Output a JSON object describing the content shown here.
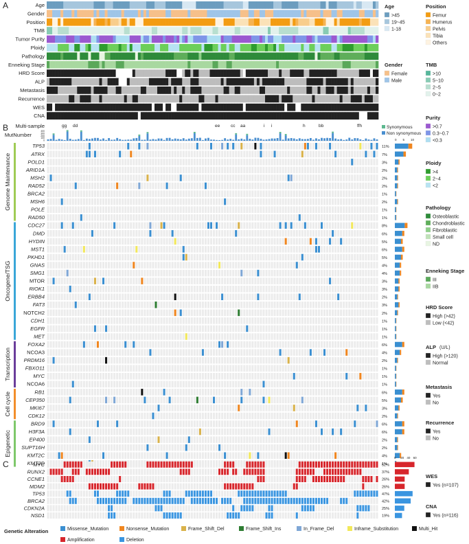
{
  "chart_data": {
    "type": "heatmap",
    "panel_labels": [
      "A",
      "B",
      "C"
    ],
    "n_samples": 120,
    "clinical_tracks": [
      {
        "label": "Age",
        "key": "age"
      },
      {
        "label": "Gender",
        "key": "gender"
      },
      {
        "label": "Position",
        "key": "position"
      },
      {
        "label": "TMB",
        "key": "tmb"
      },
      {
        "label": "Tumor Purity",
        "key": "purity"
      },
      {
        "label": "Ploidy",
        "key": "ploidy"
      },
      {
        "label": "Pathology",
        "key": "pathology"
      },
      {
        "label": "Enneking Stage",
        "key": "enneking"
      },
      {
        "label": "HRD Score",
        "key": "hrd"
      },
      {
        "label": "ALP",
        "key": "alp"
      },
      {
        "label": "Metastasis",
        "key": "metastasis"
      },
      {
        "label": "Recurrence",
        "key": "recurrence"
      },
      {
        "label": "WES",
        "key": "wes"
      },
      {
        "label": "CNA",
        "key": "cna"
      }
    ],
    "multi_sample_label": "Multi-sample",
    "multi_sample_marks": [
      "gg",
      "dd",
      "ee",
      "cc",
      "aa",
      "i",
      "i",
      "h",
      "bb",
      "ffh"
    ],
    "mutnumber_label": "MutNumber",
    "mutnumber_ticks": [
      "400",
      "300",
      "200",
      "100",
      "0"
    ],
    "mutnumber_legend": [
      {
        "label": "Synonymous",
        "color": "#5cb88f"
      },
      {
        "label": "Non synonymous",
        "color": "#4a8fd0"
      }
    ],
    "gene_groups": [
      {
        "name": "Genome Maintenance",
        "color": "#9fcc55",
        "genes": [
          {
            "gene": "TP53",
            "pct": "11%",
            "italic": true
          },
          {
            "gene": "ATRX",
            "pct": "7%",
            "italic": true
          },
          {
            "gene": "POLD1",
            "pct": "3%",
            "italic": true
          },
          {
            "gene": "ARID1A",
            "pct": "2%",
            "italic": true
          },
          {
            "gene": "MSH2",
            "pct": "2%",
            "italic": true
          },
          {
            "gene": "RAD52",
            "pct": "2%",
            "italic": true
          },
          {
            "gene": "BRCA2",
            "pct": "1%",
            "italic": true
          },
          {
            "gene": "MSH6",
            "pct": "2%",
            "italic": true
          },
          {
            "gene": "POLE",
            "pct": "1%",
            "italic": true
          },
          {
            "gene": "RAD50",
            "pct": "1%",
            "italic": true
          }
        ]
      },
      {
        "name": "Oncogene/TSG",
        "color": "#3aa6d8",
        "genes": [
          {
            "gene": "CDC27",
            "pct": "8%",
            "italic": true
          },
          {
            "gene": "DMD",
            "pct": "6%",
            "italic": true
          },
          {
            "gene": "HYDIN",
            "pct": "5%",
            "italic": true
          },
          {
            "gene": "MST1",
            "pct": "6%",
            "italic": true
          },
          {
            "gene": "PKHD1",
            "pct": "5%",
            "italic": true
          },
          {
            "gene": "GNAS",
            "pct": "4%",
            "italic": true
          },
          {
            "gene": "SMG1",
            "pct": "4%",
            "italic": true
          },
          {
            "gene": "MTOR",
            "pct": "3%",
            "italic": false
          },
          {
            "gene": "RIOK1",
            "pct": "3%",
            "italic": true
          },
          {
            "gene": "ERBB4",
            "pct": "2%",
            "italic": true
          },
          {
            "gene": "FAT3",
            "pct": "3%",
            "italic": true
          },
          {
            "gene": "NOTCH2",
            "pct": "2%",
            "italic": false
          },
          {
            "gene": "CDH1",
            "pct": "1%",
            "italic": true
          },
          {
            "gene": "EGFR",
            "pct": "1%",
            "italic": true
          },
          {
            "gene": "MET",
            "pct": "1%",
            "italic": true
          }
        ]
      },
      {
        "name": "Transcription",
        "color": "#6a3d9a",
        "genes": [
          {
            "gene": "FOXA2",
            "pct": "6%",
            "italic": true
          },
          {
            "gene": "NCOA3",
            "pct": "4%",
            "italic": false
          },
          {
            "gene": "PRDM16",
            "pct": "2%",
            "italic": true
          },
          {
            "gene": "FBXO11",
            "pct": "1%",
            "italic": true
          },
          {
            "gene": "MYC",
            "pct": "1%",
            "italic": true
          },
          {
            "gene": "NCOA6",
            "pct": "1%",
            "italic": false
          }
        ]
      },
      {
        "name": "Cell cycle",
        "color": "#f28e2b",
        "genes": [
          {
            "gene": "RB1",
            "pct": "6%",
            "italic": true
          },
          {
            "gene": "CEP350",
            "pct": "5%",
            "italic": true
          },
          {
            "gene": "MKI67",
            "pct": "3%",
            "italic": true
          },
          {
            "gene": "CDK12",
            "pct": "2%",
            "italic": true
          }
        ]
      },
      {
        "name": "Epigenetic",
        "color": "#7ec86a",
        "genes": [
          {
            "gene": "BRD9",
            "pct": "6%",
            "italic": true
          },
          {
            "gene": "H3F3A",
            "pct": "6%",
            "italic": true
          },
          {
            "gene": "EP400",
            "pct": "2%",
            "italic": true
          },
          {
            "gene": "SUPT16H",
            "pct": "2%",
            "italic": true
          },
          {
            "gene": "KMT2C",
            "pct": "4%",
            "italic": true
          },
          {
            "gene": "KMT2D",
            "pct": "1%",
            "italic": true
          }
        ]
      }
    ],
    "mut_bar_axis": [
      "0",
      "5",
      "10"
    ],
    "cna_genes": [
      {
        "gene": "MYC",
        "pct": "52%",
        "type": "amp",
        "frac": 0.52
      },
      {
        "gene": "RUNX2",
        "pct": "37%",
        "type": "amp",
        "frac": 0.37
      },
      {
        "gene": "CCNE1",
        "pct": "26%",
        "type": "amp",
        "frac": 0.26
      },
      {
        "gene": "MDM2",
        "pct": "26%",
        "type": "amp",
        "frac": 0.26
      },
      {
        "gene": "TP53",
        "pct": "47%",
        "type": "del",
        "frac": 0.47
      },
      {
        "gene": "BRCA2",
        "pct": "42%",
        "type": "del",
        "frac": 0.42
      },
      {
        "gene": "CDKN2A",
        "pct": "25%",
        "type": "del",
        "frac": 0.25
      },
      {
        "gene": "NSD1",
        "pct": "19%",
        "type": "del",
        "frac": 0.19
      }
    ],
    "cna_bar_axis": [
      "0",
      "20",
      "40",
      "60"
    ],
    "alteration_legend_title": "Genetic Alteration",
    "alteration_types": [
      {
        "label": "Missense_Mutation",
        "color": "#3a8fd1"
      },
      {
        "label": "Nonsense_Mutation",
        "color": "#f0861f"
      },
      {
        "label": "Frame_Shift_Del",
        "color": "#d9b24a"
      },
      {
        "label": "Frame_Shift_Ins",
        "color": "#2e7d32"
      },
      {
        "label": "In_Frame_Del",
        "color": "#7fa7d6"
      },
      {
        "label": "Inframe_Substitution",
        "color": "#f2e85a"
      },
      {
        "label": "Multi_Hit",
        "color": "#111111"
      },
      {
        "label": "Amplification",
        "color": "#d7262c"
      },
      {
        "label": "Deletion",
        "color": "#3a95e0"
      }
    ],
    "legends": [
      {
        "title": "Age",
        "items": [
          {
            "label": ">45",
            "color": "#6c9dbf"
          },
          {
            "label": "19~45",
            "color": "#a6c6dd"
          },
          {
            "label": "1-18",
            "color": "#d8e8f3"
          }
        ]
      },
      {
        "title": "Position",
        "items": [
          {
            "label": "Femur",
            "color": "#f39c12"
          },
          {
            "label": "Humerus",
            "color": "#f6b352"
          },
          {
            "label": "Pelvis",
            "color": "#f8cd8c"
          },
          {
            "label": "Tibia",
            "color": "#fbe2b8"
          },
          {
            "label": "Others",
            "color": "#fef3e1"
          }
        ]
      },
      {
        "title": "Gender",
        "items": [
          {
            "label": "Female",
            "color": "#f6c08a"
          },
          {
            "label": "Male",
            "color": "#9fc5e8"
          }
        ]
      },
      {
        "title": "TMB",
        "items": [
          {
            "label": ">10",
            "color": "#56b69a"
          },
          {
            "label": "5~10",
            "color": "#88cbb4"
          },
          {
            "label": "2~5",
            "color": "#b8dfd0"
          },
          {
            "label": "0~2",
            "color": "#e2f2ec"
          }
        ]
      },
      {
        "title": "Purity",
        "items": [
          {
            "label": ">0.7",
            "color": "#9b59d0"
          },
          {
            "label": "0.3~0.7",
            "color": "#7f95e8"
          },
          {
            "label": "<0.3",
            "color": "#aedff2"
          }
        ]
      },
      {
        "title": "Ploidy",
        "items": [
          {
            "label": ">4",
            "color": "#2e9c2e"
          },
          {
            "label": "2~4",
            "color": "#6ccf5a"
          },
          {
            "label": "<2",
            "color": "#b7e3f2"
          }
        ]
      },
      {
        "title": "Pathology",
        "items": [
          {
            "label": "Osteoblastic",
            "color": "#2e8b3a"
          },
          {
            "label": "Chondroblastic",
            "color": "#5fae5a"
          },
          {
            "label": "Fibroblastic",
            "color": "#8fcf8a"
          },
          {
            "label": "Small cell",
            "color": "#bfe2b8"
          },
          {
            "label": "ND",
            "color": "#e8f5e2"
          }
        ]
      },
      {
        "title": "Enneking Stage",
        "items": [
          {
            "label": "III",
            "color": "#5aa85a"
          },
          {
            "label": "IIB",
            "color": "#a8d8a0"
          }
        ]
      },
      {
        "title": "HRD Score",
        "items": [
          {
            "label": "High (>42)",
            "color": "#222222"
          },
          {
            "label": "Low  (<42)",
            "color": "#bdbdbd"
          }
        ]
      },
      {
        "title": "ALP",
        "title_suffix": "(U/L)",
        "items": [
          {
            "label": "High (>120)",
            "color": "#222222"
          },
          {
            "label": "Normal",
            "color": "#bdbdbd"
          }
        ]
      },
      {
        "title": "Metastasis",
        "items": [
          {
            "label": "Yes",
            "color": "#222222"
          },
          {
            "label": "No",
            "color": "#bdbdbd"
          }
        ]
      },
      {
        "title": "Recurrence",
        "items": [
          {
            "label": "Yes",
            "color": "#222222"
          },
          {
            "label": "No",
            "color": "#bdbdbd"
          }
        ]
      },
      {
        "title": "WES",
        "items": [
          {
            "label": "Yes (n=107)",
            "color": "#222222"
          }
        ]
      },
      {
        "title": "CNA",
        "items": [
          {
            "label": "Yes (n=116)",
            "color": "#222222"
          }
        ]
      }
    ]
  }
}
